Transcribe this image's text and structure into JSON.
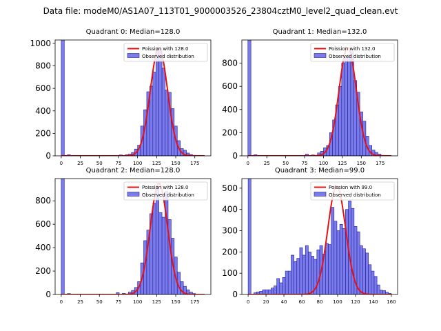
{
  "figure": {
    "title": "Data file: modeM0/AS1A07_113T01_9000003526_23804cztM0_level2_quad_clean.evt"
  },
  "colors": {
    "bar_fill": "#7b7bea",
    "bar_edge": "#1c1ca0",
    "poisson_line": "#e81010"
  },
  "chart_data": [
    {
      "type": "bar",
      "title": "Quadrant 0: Median=128.0",
      "legend": {
        "location": "top-right",
        "line_label": "Poission with 128.0",
        "bar_label": "Observed distribution"
      },
      "median": 128.0,
      "xlim": [
        -8,
        196
      ],
      "ylim": [
        0,
        1030
      ],
      "xticks": [
        0,
        25,
        50,
        75,
        100,
        125,
        150,
        175
      ],
      "yticks": [
        0,
        200,
        400,
        600,
        800,
        1000
      ],
      "bin_width": 4,
      "bins": [
        [
          0,
          1030
        ],
        [
          8,
          10
        ],
        [
          28,
          3
        ],
        [
          48,
          2
        ],
        [
          68,
          4
        ],
        [
          76,
          8
        ],
        [
          84,
          10
        ],
        [
          88,
          15
        ],
        [
          92,
          30
        ],
        [
          96,
          60
        ],
        [
          100,
          95
        ],
        [
          104,
          265
        ],
        [
          108,
          410
        ],
        [
          112,
          570
        ],
        [
          116,
          620
        ],
        [
          120,
          745
        ],
        [
          124,
          960
        ],
        [
          128,
          945
        ],
        [
          132,
          780
        ],
        [
          136,
          585
        ],
        [
          140,
          565
        ],
        [
          144,
          420
        ],
        [
          148,
          265
        ],
        [
          152,
          135
        ],
        [
          156,
          65
        ],
        [
          160,
          50
        ],
        [
          164,
          25
        ],
        [
          168,
          12
        ],
        [
          172,
          5
        ],
        [
          176,
          3
        ]
      ],
      "poisson_curve": {
        "mean": 128.0,
        "x_range": [
          0,
          188
        ],
        "peak": 960
      }
    },
    {
      "type": "bar",
      "title": "Quadrant 1: Median=132.0",
      "legend": {
        "location": "top-right",
        "line_label": "Poission with 132.0",
        "bar_label": "Observed distribution"
      },
      "median": 132.0,
      "xlim": [
        -8,
        198
      ],
      "ylim": [
        0,
        1000
      ],
      "xticks": [
        0,
        25,
        50,
        75,
        100,
        125,
        150,
        175
      ],
      "yticks": [
        0,
        200,
        400,
        600,
        800
      ],
      "bin_width": 4,
      "bins": [
        [
          0,
          1000
        ],
        [
          8,
          10
        ],
        [
          28,
          3
        ],
        [
          48,
          2
        ],
        [
          76,
          15
        ],
        [
          84,
          8
        ],
        [
          92,
          25
        ],
        [
          96,
          40
        ],
        [
          100,
          70
        ],
        [
          104,
          90
        ],
        [
          108,
          200
        ],
        [
          112,
          310
        ],
        [
          116,
          440
        ],
        [
          120,
          600
        ],
        [
          124,
          800
        ],
        [
          128,
          850
        ],
        [
          132,
          875
        ],
        [
          136,
          900
        ],
        [
          140,
          650
        ],
        [
          144,
          550
        ],
        [
          148,
          380
        ],
        [
          152,
          300
        ],
        [
          156,
          170
        ],
        [
          160,
          90
        ],
        [
          164,
          50
        ],
        [
          168,
          30
        ],
        [
          172,
          15
        ],
        [
          176,
          5
        ],
        [
          180,
          3
        ]
      ],
      "poisson_curve": {
        "mean": 132.0,
        "x_range": [
          0,
          190
        ],
        "peak": 935
      }
    },
    {
      "type": "bar",
      "title": "Quadrant 2: Median=128.0",
      "legend": {
        "location": "top-right",
        "line_label": "Poission with 128.0",
        "bar_label": "Observed distribution"
      },
      "median": 128.0,
      "xlim": [
        -8,
        196
      ],
      "ylim": [
        0,
        990
      ],
      "xticks": [
        0,
        25,
        50,
        75,
        100,
        125,
        150,
        175
      ],
      "yticks": [
        0,
        200,
        400,
        600,
        800
      ],
      "bin_width": 4,
      "bins": [
        [
          0,
          990
        ],
        [
          8,
          8
        ],
        [
          28,
          3
        ],
        [
          48,
          2
        ],
        [
          72,
          15
        ],
        [
          80,
          10
        ],
        [
          88,
          20
        ],
        [
          92,
          35
        ],
        [
          96,
          60
        ],
        [
          100,
          110
        ],
        [
          104,
          270
        ],
        [
          108,
          460
        ],
        [
          112,
          550
        ],
        [
          116,
          690
        ],
        [
          120,
          780
        ],
        [
          124,
          920
        ],
        [
          128,
          700
        ],
        [
          132,
          660
        ],
        [
          136,
          880
        ],
        [
          140,
          640
        ],
        [
          144,
          480
        ],
        [
          148,
          320
        ],
        [
          152,
          190
        ],
        [
          156,
          110
        ],
        [
          160,
          70
        ],
        [
          164,
          40
        ],
        [
          168,
          20
        ],
        [
          172,
          8
        ],
        [
          176,
          3
        ]
      ],
      "poisson_curve": {
        "mean": 128.0,
        "x_range": [
          0,
          188
        ],
        "peak": 950
      }
    },
    {
      "type": "bar",
      "title": "Quadrant 3: Median=99.0",
      "legend": {
        "location": "top-right",
        "line_label": "Poission with 99.0",
        "bar_label": "Observed distribution"
      },
      "median": 99.0,
      "xlim": [
        -7,
        167
      ],
      "ylim": [
        0,
        545
      ],
      "xticks": [
        0,
        20,
        40,
        60,
        80,
        100,
        120,
        140,
        160
      ],
      "yticks": [
        0,
        100,
        200,
        300,
        400,
        500
      ],
      "bin_width": 3.2,
      "bins": [
        [
          0,
          545
        ],
        [
          6.4,
          8
        ],
        [
          9.6,
          12
        ],
        [
          12.8,
          15
        ],
        [
          16,
          22
        ],
        [
          19.2,
          22
        ],
        [
          22.4,
          22
        ],
        [
          25.6,
          30
        ],
        [
          28.8,
          40
        ],
        [
          32,
          75
        ],
        [
          35.2,
          55
        ],
        [
          38.4,
          80
        ],
        [
          41.6,
          110
        ],
        [
          44.8,
          110
        ],
        [
          48,
          185
        ],
        [
          51.2,
          155
        ],
        [
          54.4,
          170
        ],
        [
          57.6,
          220
        ],
        [
          60.8,
          185
        ],
        [
          64,
          230
        ],
        [
          67.2,
          200
        ],
        [
          70.4,
          180
        ],
        [
          73.6,
          165
        ],
        [
          76.8,
          210
        ],
        [
          80,
          230
        ],
        [
          83.2,
          190
        ],
        [
          86.4,
          240
        ],
        [
          89.6,
          235
        ],
        [
          92.8,
          410
        ],
        [
          96,
          345
        ],
        [
          99.2,
          300
        ],
        [
          102.4,
          330
        ],
        [
          105.6,
          310
        ],
        [
          108.8,
          400
        ],
        [
          112,
          440
        ],
        [
          115.2,
          405
        ],
        [
          118.4,
          320
        ],
        [
          121.6,
          295
        ],
        [
          124.8,
          230
        ],
        [
          128,
          215
        ],
        [
          131.2,
          195
        ],
        [
          134.4,
          140
        ],
        [
          137.6,
          110
        ],
        [
          140.8,
          85
        ],
        [
          144,
          45
        ],
        [
          147.2,
          20
        ],
        [
          150.4,
          18
        ],
        [
          153.6,
          10
        ],
        [
          156.8,
          5
        ]
      ],
      "poisson_curve": {
        "mean": 99.0,
        "x_range": [
          0,
          160
        ],
        "peak": 510
      }
    }
  ]
}
